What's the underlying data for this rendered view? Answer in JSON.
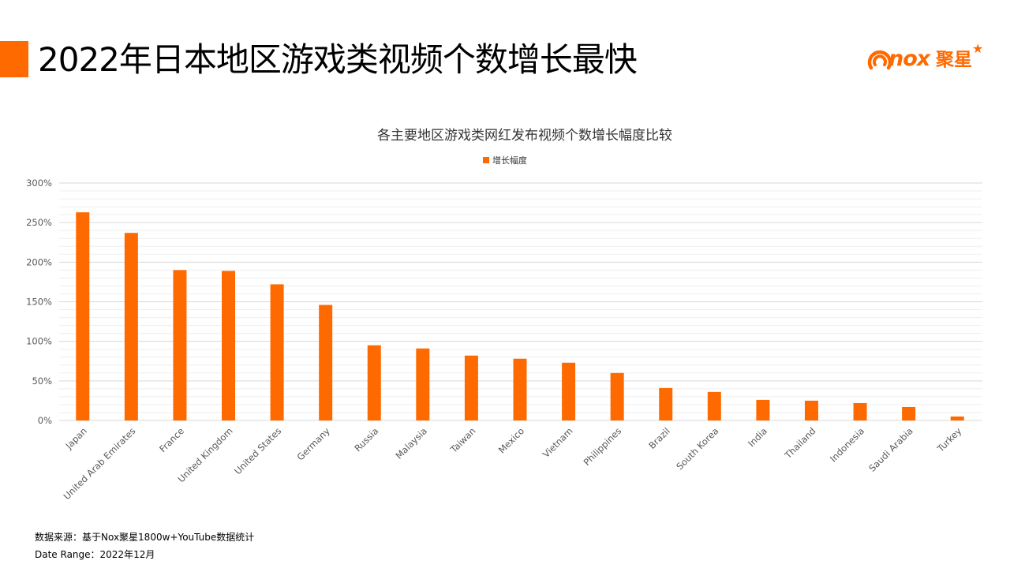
{
  "header": {
    "title": "2022年日本地区游戏类视频个数增长最快"
  },
  "logo": {
    "brand": "nox",
    "brand_cn": "聚星"
  },
  "colors": {
    "accent": "#FF6A00",
    "bar": "#FF6A00",
    "gridline": "#D9D9D9",
    "minor_gridline": "#EFEFEF",
    "axis_text": "#595959"
  },
  "chart_data": {
    "type": "bar",
    "title": "各主要地区游戏类网红发布视频个数增长幅度比较",
    "legend_position": "top",
    "grid": true,
    "xlabel": "",
    "ylabel": "",
    "ylim": [
      0,
      300
    ],
    "yticks": [
      "0%",
      "50%",
      "100%",
      "150%",
      "200%",
      "250%",
      "300%"
    ],
    "categories": [
      "Japan",
      "United Arab Emirates",
      "France",
      "United Kingdom",
      "United States",
      "Germany",
      "Russia",
      "Malaysia",
      "Taiwan",
      "Mexico",
      "Vietnam",
      "Philippines",
      "Brazil",
      "South Korea",
      "India",
      "Thailand",
      "Indonesia",
      "Saudi Arabia",
      "Turkey"
    ],
    "series": [
      {
        "name": "增长幅度",
        "values": [
          263,
          237,
          190,
          189,
          172,
          146,
          95,
          91,
          82,
          78,
          73,
          60,
          41,
          36,
          26,
          25,
          22,
          17,
          5
        ]
      }
    ]
  },
  "footer": {
    "source": "数据来源：基于Nox聚星1800w+YouTube数据统计",
    "date_range": "Date Range：2022年12月"
  }
}
